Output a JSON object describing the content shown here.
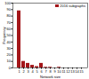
{
  "chart_data": {
    "type": "bar",
    "xlabel": "Network size",
    "ylabel": "Frequency",
    "categories": [
      "1",
      "2",
      "3",
      "4",
      "5",
      "6",
      "7",
      "8",
      "9",
      "10",
      "11",
      "12",
      "13",
      "14",
      "15"
    ],
    "series": [
      {
        "name": "2016 subgraphs",
        "color": "#a3161a",
        "values": [
          88,
          10,
          7,
          4,
          2,
          7,
          1,
          1,
          0,
          1,
          0,
          0,
          0,
          0,
          0
        ]
      }
    ],
    "ylim": [
      0,
      100
    ],
    "yticks": [
      0,
      10,
      20,
      30,
      40,
      50,
      60,
      70,
      80,
      90,
      100
    ],
    "legend": "top-right",
    "grid": false
  }
}
